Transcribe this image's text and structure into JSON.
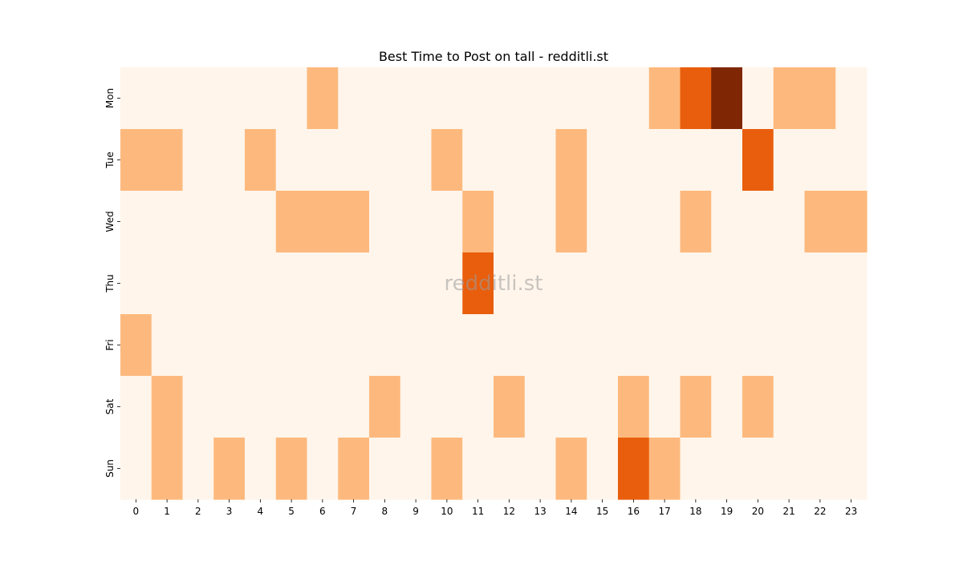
{
  "chart_data": {
    "type": "heatmap",
    "title": "Best Time to Post on tall - redditli.st",
    "watermark": "redditli.st",
    "xlabel": "",
    "ylabel": "",
    "x_categories": [
      "0",
      "1",
      "2",
      "3",
      "4",
      "5",
      "6",
      "7",
      "8",
      "9",
      "10",
      "11",
      "12",
      "13",
      "14",
      "15",
      "16",
      "17",
      "18",
      "19",
      "20",
      "21",
      "22",
      "23"
    ],
    "y_categories": [
      "Mon",
      "Tue",
      "Wed",
      "Thu",
      "Fri",
      "Sat",
      "Sun"
    ],
    "values": [
      [
        0,
        0,
        0,
        0,
        0,
        0,
        1,
        0,
        0,
        0,
        0,
        0,
        0,
        0,
        0,
        0,
        0,
        1,
        2,
        3,
        0,
        1,
        1,
        0
      ],
      [
        1,
        1,
        0,
        0,
        1,
        0,
        0,
        0,
        0,
        0,
        1,
        0,
        0,
        0,
        1,
        0,
        0,
        0,
        0,
        0,
        2,
        0,
        0,
        0
      ],
      [
        0,
        0,
        0,
        0,
        0,
        1,
        1,
        1,
        0,
        0,
        0,
        1,
        0,
        0,
        1,
        0,
        0,
        0,
        1,
        0,
        0,
        0,
        1,
        1
      ],
      [
        0,
        0,
        0,
        0,
        0,
        0,
        0,
        0,
        0,
        0,
        0,
        2,
        0,
        0,
        0,
        0,
        0,
        0,
        0,
        0,
        0,
        0,
        0,
        0
      ],
      [
        1,
        0,
        0,
        0,
        0,
        0,
        0,
        0,
        0,
        0,
        0,
        0,
        0,
        0,
        0,
        0,
        0,
        0,
        0,
        0,
        0,
        0,
        0,
        0
      ],
      [
        0,
        1,
        0,
        0,
        0,
        0,
        0,
        0,
        1,
        0,
        0,
        0,
        1,
        0,
        0,
        0,
        1,
        0,
        1,
        0,
        1,
        0,
        0,
        0
      ],
      [
        0,
        1,
        0,
        1,
        0,
        1,
        0,
        1,
        0,
        0,
        1,
        0,
        0,
        0,
        1,
        0,
        2,
        1,
        0,
        0,
        0,
        0,
        0,
        0
      ]
    ],
    "colormap": {
      "0": "#fff5eb",
      "1": "#fdb97d",
      "2": "#e95e0d",
      "3": "#7f2704"
    },
    "colorbar": false,
    "grid": false
  }
}
